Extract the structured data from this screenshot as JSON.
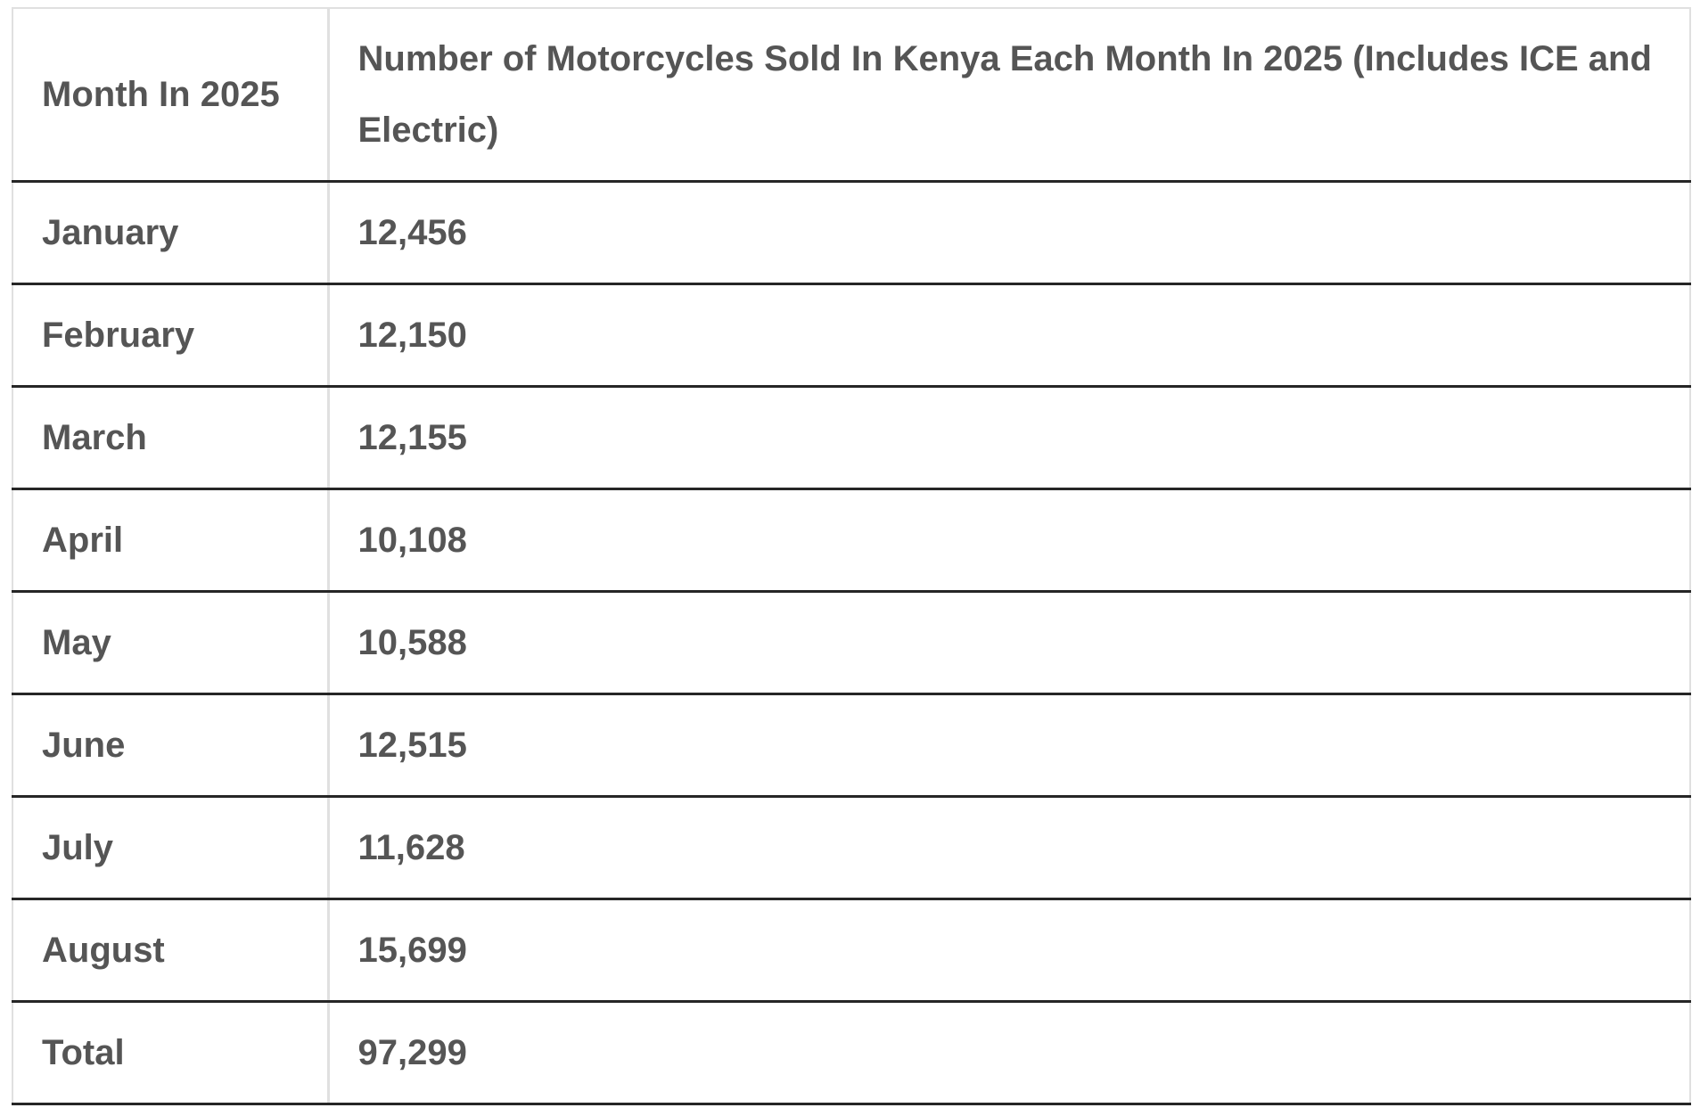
{
  "colors": {
    "background": "#ffffff",
    "text": "#555555",
    "row_divider": "#262626",
    "outer_border": "#e0e0e0",
    "column_divider": "#e0e0e0"
  },
  "table": {
    "header": {
      "month_column": "Month In 2025",
      "value_column": "Number of Motorcycles Sold In Kenya Each Month In 2025 (Includes ICE and Electric)"
    },
    "rows": [
      {
        "month": "January",
        "value": "12,456"
      },
      {
        "month": "February",
        "value": "12,150"
      },
      {
        "month": "March",
        "value": "12,155"
      },
      {
        "month": "April",
        "value": "10,108"
      },
      {
        "month": "May",
        "value": "10,588"
      },
      {
        "month": "June",
        "value": "12,515"
      },
      {
        "month": "July",
        "value": "11,628"
      },
      {
        "month": "August",
        "value": "15,699"
      },
      {
        "month": "Total",
        "value": "97,299"
      }
    ]
  },
  "chart_data": {
    "type": "table",
    "title": "Number of Motorcycles Sold In Kenya Each Month In 2025 (Includes ICE and Electric)",
    "columns": [
      "Month In 2025",
      "Number of Motorcycles Sold In Kenya Each Month In 2025 (Includes ICE and Electric)"
    ],
    "categories": [
      "January",
      "February",
      "March",
      "April",
      "May",
      "June",
      "July",
      "August"
    ],
    "values": [
      12456,
      12150,
      12155,
      10108,
      10588,
      12515,
      11628,
      15699
    ],
    "total_label": "Total",
    "total": 97299
  }
}
